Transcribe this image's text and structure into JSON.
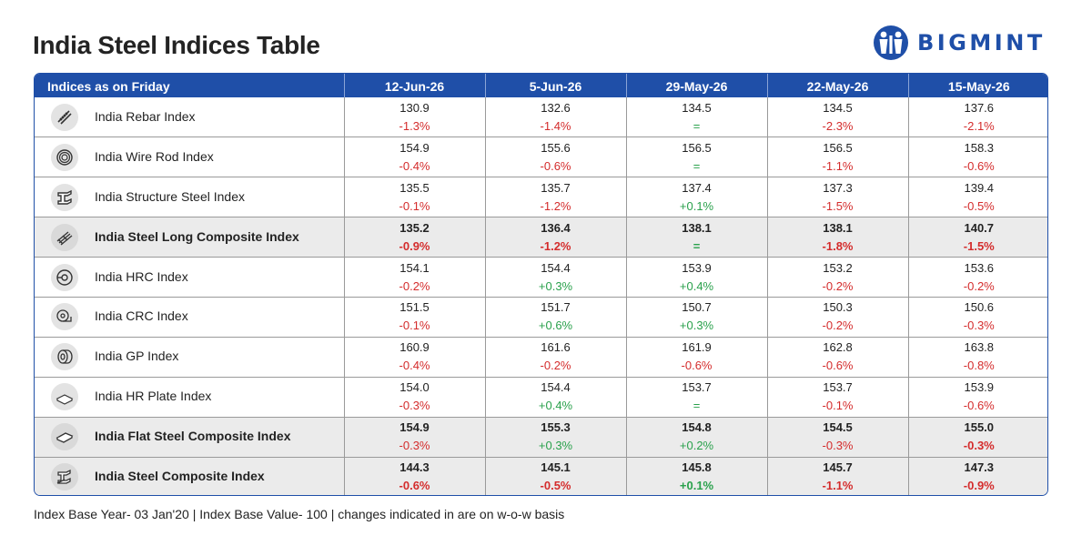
{
  "title": "India Steel Indices Table",
  "brand": {
    "name": "BIGMINT",
    "color": "#1f4fa8"
  },
  "colors": {
    "header_bg": "#1f4fa8",
    "negative": "#d42c2c",
    "positive": "#2aa14c",
    "composite_bg": "#ebebeb"
  },
  "table": {
    "header_label": "Indices as on Friday",
    "columns": [
      "12-Jun-26",
      "5-Jun-26",
      "29-May-26",
      "22-May-26",
      "15-May-26"
    ],
    "rows": [
      {
        "name": "India Rebar Index",
        "icon": "rebar-icon",
        "composite": false,
        "values": [
          "130.9",
          "132.6",
          "134.5",
          "134.5",
          "137.6"
        ],
        "changes": [
          "-1.3%",
          "-1.4%",
          "=",
          "-2.3%",
          "-2.1%"
        ]
      },
      {
        "name": "India Wire Rod Index",
        "icon": "wire-rod-coil-icon",
        "composite": false,
        "values": [
          "154.9",
          "155.6",
          "156.5",
          "156.5",
          "158.3"
        ],
        "changes": [
          "-0.4%",
          "-0.6%",
          "=",
          "-1.1%",
          "-0.6%"
        ]
      },
      {
        "name": "India Structure Steel Index",
        "icon": "structure-beam-icon",
        "composite": false,
        "values": [
          "135.5",
          "135.7",
          "137.4",
          "137.3",
          "139.4"
        ],
        "changes": [
          "-0.1%",
          "-1.2%",
          "+0.1%",
          "-1.5%",
          "-0.5%"
        ]
      },
      {
        "name": "India Steel Long Composite Index",
        "icon": "long-bundle-icon",
        "composite": true,
        "values": [
          "135.2",
          "136.4",
          "138.1",
          "138.1",
          "140.7"
        ],
        "changes": [
          "-0.9%",
          "-1.2%",
          "=",
          "-1.8%",
          "-1.5%"
        ],
        "bold_changes": [
          true,
          true,
          true,
          true,
          true
        ]
      },
      {
        "name": "India HRC Index",
        "icon": "hrc-coil-icon",
        "composite": false,
        "values": [
          "154.1",
          "154.4",
          "153.9",
          "153.2",
          "153.6"
        ],
        "changes": [
          "-0.2%",
          "+0.3%",
          "+0.4%",
          "-0.2%",
          "-0.2%"
        ]
      },
      {
        "name": "India CRC Index",
        "icon": "crc-roll-icon",
        "composite": false,
        "values": [
          "151.5",
          "151.7",
          "150.7",
          "150.3",
          "150.6"
        ],
        "changes": [
          "-0.1%",
          "+0.6%",
          "+0.3%",
          "-0.2%",
          "-0.3%"
        ]
      },
      {
        "name": "India GP Index",
        "icon": "gp-coil-icon",
        "composite": false,
        "values": [
          "160.9",
          "161.6",
          "161.9",
          "162.8",
          "163.8"
        ],
        "changes": [
          "-0.4%",
          "-0.2%",
          "-0.6%",
          "-0.6%",
          "-0.8%"
        ]
      },
      {
        "name": "India HR Plate Index",
        "icon": "plate-stack-icon",
        "composite": false,
        "values": [
          "154.0",
          "154.4",
          "153.7",
          "153.7",
          "153.9"
        ],
        "changes": [
          "-0.3%",
          "+0.4%",
          "=",
          "-0.1%",
          "-0.6%"
        ]
      },
      {
        "name": "India Flat Steel Composite Index",
        "icon": "flat-sheet-icon",
        "composite": true,
        "values": [
          "154.9",
          "155.3",
          "154.8",
          "154.5",
          "155.0"
        ],
        "changes": [
          "-0.3%",
          "+0.3%",
          "+0.2%",
          "-0.3%",
          "-0.3%"
        ],
        "bold_changes": [
          false,
          false,
          false,
          false,
          true
        ]
      },
      {
        "name": "India Steel Composite Index",
        "icon": "steel-composite-icon",
        "composite": true,
        "values": [
          "144.3",
          "145.1",
          "145.8",
          "145.7",
          "147.3"
        ],
        "changes": [
          "-0.6%",
          "-0.5%",
          "+0.1%",
          "-1.1%",
          "-0.9%"
        ],
        "bold_changes": [
          true,
          true,
          true,
          true,
          true
        ]
      }
    ]
  },
  "footnote": "Index Base Year- 03 Jan'20 | Index Base Value- 100 | changes indicated in are on w-o-w basis"
}
